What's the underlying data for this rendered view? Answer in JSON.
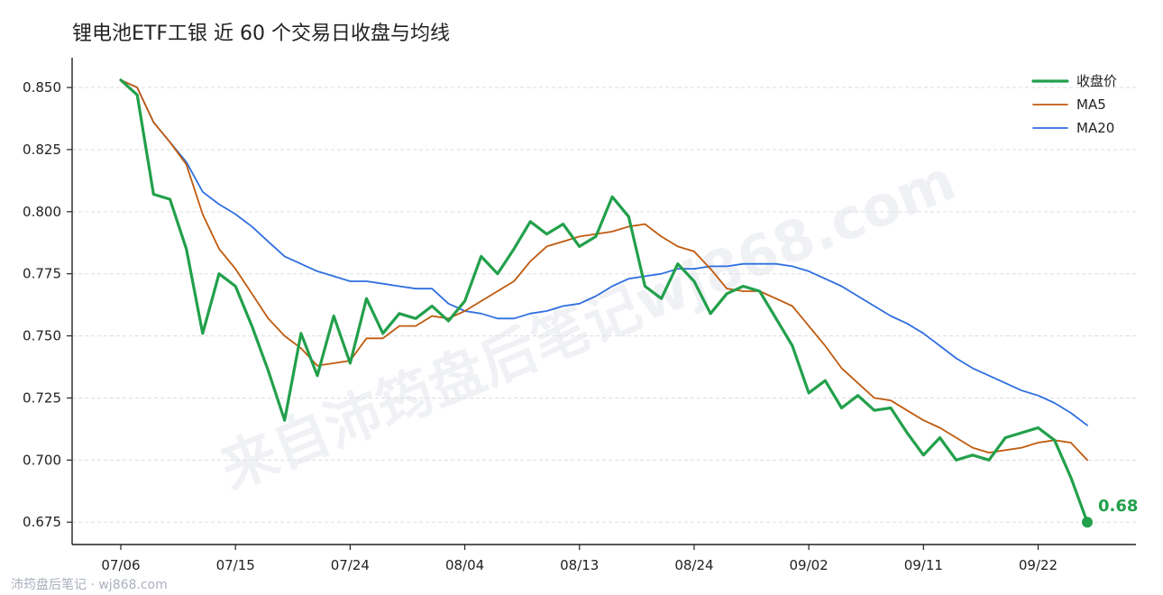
{
  "chart_data": {
    "type": "line",
    "title": "锂电池ETF工银 近 60 个交易日收盘与均线",
    "x": [
      "07/06",
      "07/07",
      "07/08",
      "07/09",
      "07/10",
      "07/13",
      "07/14",
      "07/15",
      "07/16",
      "07/17",
      "07/20",
      "07/21",
      "07/22",
      "07/23",
      "07/24",
      "07/27",
      "07/28",
      "07/29",
      "07/30",
      "07/31",
      "08/03",
      "08/04",
      "08/05",
      "08/06",
      "08/07",
      "08/10",
      "08/11",
      "08/12",
      "08/13",
      "08/14",
      "08/17",
      "08/18",
      "08/19",
      "08/20",
      "08/21",
      "08/24",
      "08/25",
      "08/26",
      "08/27",
      "08/28",
      "08/31",
      "09/01",
      "09/02",
      "09/03",
      "09/04",
      "09/07",
      "09/08",
      "09/09",
      "09/10",
      "09/11",
      "09/14",
      "09/15",
      "09/16",
      "09/17",
      "09/18",
      "09/21",
      "09/22",
      "09/23",
      "09/24",
      "09/25"
    ],
    "xticks": [
      "07/06",
      "07/15",
      "07/24",
      "08/04",
      "08/13",
      "08/24",
      "09/02",
      "09/11",
      "09/22"
    ],
    "series": [
      {
        "name": "收盘价",
        "color": "#22a04b",
        "values": [
          0.853,
          0.847,
          0.807,
          0.805,
          0.785,
          0.751,
          0.775,
          0.77,
          0.754,
          0.736,
          0.716,
          0.751,
          0.734,
          0.758,
          0.739,
          0.765,
          0.751,
          0.759,
          0.757,
          0.762,
          0.756,
          0.764,
          0.782,
          0.775,
          0.785,
          0.796,
          0.791,
          0.795,
          0.786,
          0.79,
          0.806,
          0.798,
          0.77,
          0.765,
          0.779,
          0.772,
          0.759,
          0.767,
          0.77,
          0.768,
          0.757,
          0.746,
          0.727,
          0.732,
          0.721,
          0.726,
          0.72,
          0.721,
          0.711,
          0.702,
          0.709,
          0.7,
          0.702,
          0.7,
          0.709,
          0.711,
          0.713,
          0.708,
          0.693,
          0.675
        ]
      },
      {
        "name": "MA5",
        "color": "#c05a0e",
        "values": [
          0.853,
          0.85,
          0.836,
          0.828,
          0.819,
          0.799,
          0.785,
          0.777,
          0.767,
          0.757,
          0.75,
          0.745,
          0.738,
          0.739,
          0.74,
          0.749,
          0.749,
          0.754,
          0.754,
          0.758,
          0.757,
          0.76,
          0.764,
          0.768,
          0.772,
          0.78,
          0.786,
          0.788,
          0.79,
          0.791,
          0.792,
          0.794,
          0.795,
          0.79,
          0.786,
          0.784,
          0.777,
          0.769,
          0.768,
          0.768,
          0.765,
          0.762,
          0.754,
          0.746,
          0.737,
          0.731,
          0.725,
          0.724,
          0.72,
          0.716,
          0.713,
          0.709,
          0.705,
          0.703,
          0.704,
          0.705,
          0.707,
          0.708,
          0.707,
          0.7
        ]
      },
      {
        "name": "MA20",
        "color": "#2f6fe0",
        "values": [
          0.853,
          0.85,
          0.836,
          0.828,
          0.82,
          0.808,
          0.803,
          0.799,
          0.794,
          0.788,
          0.782,
          0.779,
          0.776,
          0.774,
          0.772,
          0.772,
          0.771,
          0.77,
          0.769,
          0.769,
          0.763,
          0.76,
          0.759,
          0.757,
          0.757,
          0.759,
          0.76,
          0.762,
          0.763,
          0.766,
          0.77,
          0.773,
          0.774,
          0.775,
          0.777,
          0.777,
          0.778,
          0.778,
          0.779,
          0.779,
          0.779,
          0.778,
          0.776,
          0.773,
          0.77,
          0.766,
          0.762,
          0.758,
          0.755,
          0.751,
          0.746,
          0.741,
          0.737,
          0.734,
          0.731,
          0.728,
          0.726,
          0.723,
          0.719,
          0.714
        ]
      }
    ],
    "ylim": [
      0.666,
      0.862
    ],
    "yticks": [
      0.675,
      0.7,
      0.725,
      0.75,
      0.775,
      0.8,
      0.825,
      0.85
    ],
    "grid": "horizontal",
    "legend": "top-right",
    "last_value_label": "0.68"
  },
  "watermark": "来自沛筠盘后笔记wj868.com",
  "footer": "沛筠盘后笔记 · wj868.com"
}
